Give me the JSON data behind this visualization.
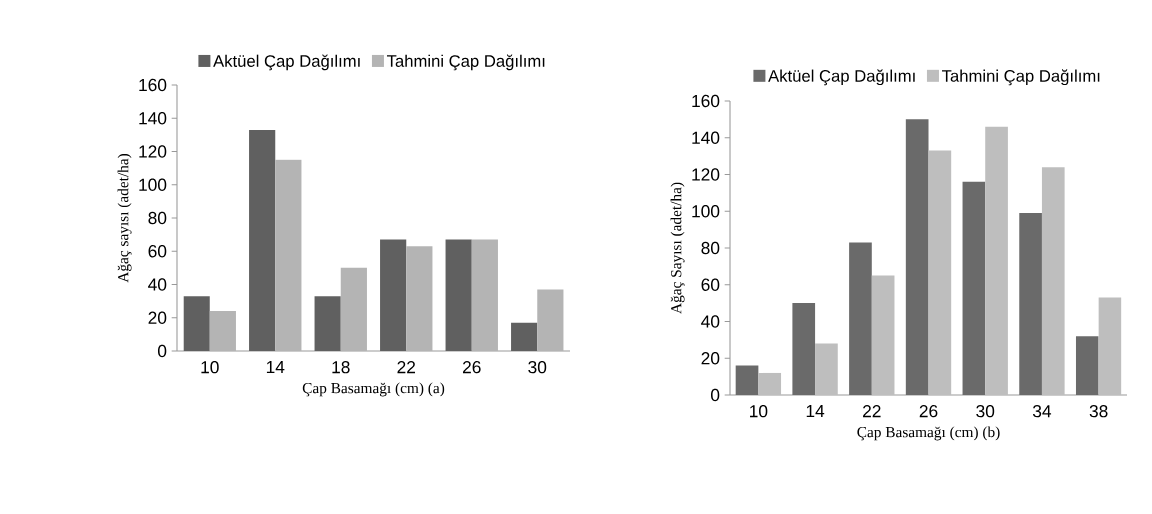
{
  "chart_data": [
    {
      "type": "bar",
      "categories": [
        "10",
        "14",
        "18",
        "22",
        "26",
        "30"
      ],
      "xlabel": "Çap Basamağı (cm) (a)",
      "ylabel": "Ağaç sayısı (adet/ha)",
      "ylim": [
        0,
        160
      ],
      "yticks": [
        0,
        20,
        40,
        60,
        80,
        100,
        120,
        140,
        160
      ],
      "legend": "top",
      "series": [
        {
          "name": "Aktüel Çap Dağılımı",
          "color": "#606060",
          "values": [
            33,
            133,
            33,
            67,
            67,
            17
          ]
        },
        {
          "name": "Tahmini Çap Dağılımı",
          "color": "#b4b4b4",
          "values": [
            24,
            115,
            50,
            63,
            67,
            37
          ]
        }
      ]
    },
    {
      "type": "bar",
      "categories": [
        "10",
        "14",
        "22",
        "26",
        "30",
        "34",
        "38"
      ],
      "xlabel": "Çap Basamağı (cm) (b)",
      "ylabel": "Ağaç Sayısı (adet/ha)",
      "ylim": [
        0,
        160
      ],
      "yticks": [
        0,
        20,
        40,
        60,
        80,
        100,
        120,
        140,
        160
      ],
      "legend": "top",
      "series": [
        {
          "name": "Aktüel Çap Dağılımı",
          "color": "#6a6a6a",
          "values": [
            16,
            50,
            83,
            150,
            116,
            99,
            32
          ]
        },
        {
          "name": "Tahmini Çap Dağılımı",
          "color": "#bebebe",
          "values": [
            12,
            28,
            65,
            133,
            146,
            124,
            53
          ]
        }
      ]
    }
  ]
}
